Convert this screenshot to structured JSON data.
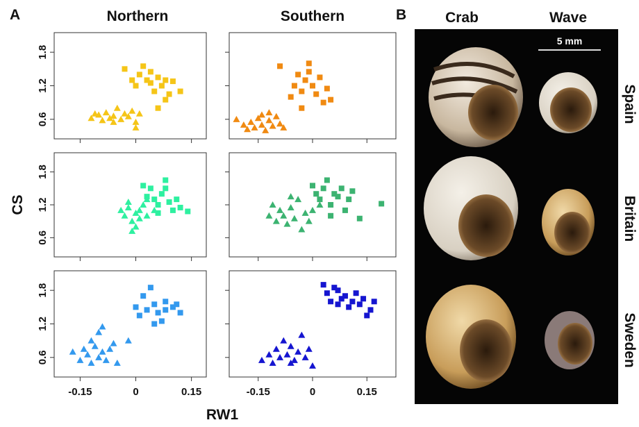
{
  "figure": {
    "panel_a": "A",
    "columns": [
      "Northern",
      "Southern"
    ],
    "xlabel": "RW1",
    "ylabel": "CS"
  },
  "photos": {
    "panel_b": "B",
    "columns": [
      "Crab",
      "Wave"
    ],
    "scale": "5 mm",
    "rows": [
      "Spain",
      "Britain",
      "Sweden"
    ]
  },
  "chart_data": [
    {
      "type": "scatter",
      "xlim": [
        -0.22,
        0.19
      ],
      "ylim": [
        0.25,
        2.15
      ],
      "xticks": [
        -0.15,
        0,
        0.15
      ],
      "yticks": [
        0.6,
        1.2,
        1.8
      ],
      "show_xtick_labels": false,
      "show_ytick_labels": true,
      "series": [
        {
          "marker": "triangle",
          "color": "#f5c518",
          "x": [
            -0.12,
            -0.1,
            -0.09,
            -0.08,
            -0.07,
            -0.06,
            -0.05,
            -0.04,
            -0.03,
            -0.02,
            -0.01,
            0.0,
            0.01,
            0.0,
            -0.06,
            -0.11
          ],
          "y": [
            0.62,
            0.68,
            0.58,
            0.72,
            0.62,
            0.66,
            0.8,
            0.6,
            0.7,
            0.65,
            0.75,
            0.55,
            0.7,
            0.45,
            0.55,
            0.7
          ]
        },
        {
          "marker": "square",
          "color": "#f5c518",
          "x": [
            -0.03,
            -0.01,
            0.0,
            0.01,
            0.02,
            0.03,
            0.04,
            0.05,
            0.06,
            0.07,
            0.08,
            0.08,
            0.09,
            0.12,
            0.04,
            0.1,
            0.06
          ],
          "y": [
            1.5,
            1.3,
            1.2,
            1.4,
            1.55,
            1.3,
            1.25,
            1.1,
            1.35,
            1.2,
            1.3,
            0.95,
            1.05,
            1.1,
            1.45,
            1.28,
            0.8
          ]
        }
      ]
    },
    {
      "type": "scatter",
      "xlim": [
        -0.23,
        0.23
      ],
      "ylim": [
        0.25,
        2.15
      ],
      "xticks": [
        -0.15,
        0,
        0.15
      ],
      "yticks": [
        0.6,
        1.2,
        1.8
      ],
      "show_xtick_labels": false,
      "show_ytick_labels": false,
      "series": [
        {
          "marker": "triangle",
          "color": "#f08a12",
          "x": [
            -0.21,
            -0.19,
            -0.17,
            -0.16,
            -0.15,
            -0.14,
            -0.13,
            -0.12,
            -0.11,
            -0.1,
            -0.09,
            -0.08,
            -0.14,
            -0.18,
            -0.12
          ],
          "y": [
            0.6,
            0.5,
            0.55,
            0.45,
            0.62,
            0.5,
            0.4,
            0.58,
            0.48,
            0.65,
            0.52,
            0.45,
            0.68,
            0.42,
            0.72
          ]
        },
        {
          "marker": "square",
          "color": "#f08a12",
          "x": [
            -0.09,
            -0.06,
            -0.05,
            -0.04,
            -0.03,
            -0.02,
            -0.01,
            0.0,
            0.01,
            0.02,
            0.03,
            0.04,
            -0.03,
            0.05,
            -0.01
          ],
          "y": [
            1.55,
            1.0,
            1.2,
            1.4,
            1.1,
            1.3,
            1.6,
            1.2,
            1.05,
            1.35,
            0.9,
            1.15,
            0.8,
            0.95,
            1.45
          ]
        }
      ]
    },
    {
      "type": "scatter",
      "xlim": [
        -0.22,
        0.19
      ],
      "ylim": [
        0.25,
        2.15
      ],
      "xticks": [
        -0.15,
        0,
        0.15
      ],
      "yticks": [
        0.6,
        1.2,
        1.8
      ],
      "show_xtick_labels": false,
      "show_ytick_labels": true,
      "series": [
        {
          "marker": "triangle",
          "color": "#2ef0a0",
          "x": [
            -0.04,
            -0.03,
            -0.02,
            -0.01,
            0.0,
            0.0,
            0.01,
            0.02,
            -0.01,
            0.03,
            0.03,
            0.05,
            -0.02,
            0.01
          ],
          "y": [
            1.1,
            1.0,
            1.15,
            0.9,
            0.8,
            1.05,
            0.95,
            1.2,
            0.72,
            1.0,
            1.3,
            1.1,
            1.25,
            1.1
          ]
        },
        {
          "marker": "square",
          "color": "#2ef0a0",
          "x": [
            0.02,
            0.03,
            0.04,
            0.05,
            0.06,
            0.07,
            0.08,
            0.09,
            0.1,
            0.11,
            0.12,
            0.14,
            0.06,
            0.08
          ],
          "y": [
            1.55,
            1.35,
            1.5,
            1.3,
            1.2,
            1.4,
            1.65,
            1.25,
            1.1,
            1.3,
            1.15,
            1.08,
            1.05,
            1.5
          ]
        }
      ]
    },
    {
      "type": "scatter",
      "xlim": [
        -0.23,
        0.23
      ],
      "ylim": [
        0.25,
        2.15
      ],
      "xticks": [
        -0.15,
        0,
        0.15
      ],
      "yticks": [
        0.6,
        1.2,
        1.8
      ],
      "show_xtick_labels": false,
      "show_ytick_labels": false,
      "series": [
        {
          "marker": "triangle",
          "color": "#3cb371",
          "x": [
            -0.12,
            -0.11,
            -0.1,
            -0.09,
            -0.08,
            -0.07,
            -0.06,
            -0.05,
            -0.04,
            -0.03,
            -0.02,
            -0.01,
            0.0,
            -0.06,
            0.02
          ],
          "y": [
            1.0,
            1.2,
            0.9,
            1.1,
            1.0,
            0.85,
            1.15,
            0.95,
            1.3,
            0.75,
            1.05,
            0.9,
            1.1,
            1.35,
            1.2
          ]
        },
        {
          "marker": "square",
          "color": "#3cb371",
          "x": [
            0.0,
            0.01,
            0.02,
            0.03,
            0.04,
            0.05,
            0.06,
            0.07,
            0.08,
            0.09,
            0.1,
            0.11,
            0.13,
            0.19,
            0.05
          ],
          "y": [
            1.55,
            1.4,
            1.3,
            1.5,
            1.65,
            1.2,
            1.4,
            1.35,
            1.5,
            1.1,
            1.3,
            1.45,
            0.95,
            1.22,
            1.0
          ]
        }
      ]
    },
    {
      "type": "scatter",
      "xlim": [
        -0.22,
        0.19
      ],
      "ylim": [
        0.25,
        2.15
      ],
      "xticks": [
        -0.15,
        0,
        0.15
      ],
      "yticks": [
        0.6,
        1.2,
        1.8
      ],
      "show_xtick_labels": true,
      "show_ytick_labels": true,
      "series": [
        {
          "marker": "triangle",
          "color": "#3399ee",
          "x": [
            -0.17,
            -0.15,
            -0.14,
            -0.13,
            -0.12,
            -0.12,
            -0.11,
            -0.1,
            -0.09,
            -0.09,
            -0.08,
            -0.07,
            -0.06,
            -0.05,
            -0.02,
            -0.1
          ],
          "y": [
            0.7,
            0.55,
            0.75,
            0.65,
            0.9,
            0.5,
            0.8,
            0.6,
            1.15,
            0.7,
            0.55,
            0.75,
            0.85,
            0.5,
            0.9,
            1.05
          ]
        },
        {
          "marker": "square",
          "color": "#3399ee",
          "x": [
            0.0,
            0.01,
            0.02,
            0.03,
            0.04,
            0.05,
            0.06,
            0.07,
            0.08,
            0.08,
            0.1,
            0.12,
            0.05,
            0.11
          ],
          "y": [
            1.5,
            1.35,
            1.7,
            1.45,
            1.85,
            1.55,
            1.4,
            1.25,
            1.6,
            1.45,
            1.5,
            1.4,
            1.2,
            1.55
          ]
        }
      ]
    },
    {
      "type": "scatter",
      "xlim": [
        -0.23,
        0.23
      ],
      "ylim": [
        0.25,
        2.15
      ],
      "xticks": [
        -0.15,
        0,
        0.15
      ],
      "yticks": [
        0.6,
        1.2,
        1.8
      ],
      "show_xtick_labels": true,
      "show_ytick_labels": false,
      "series": [
        {
          "marker": "triangle",
          "color": "#1515d0",
          "x": [
            -0.14,
            -0.12,
            -0.11,
            -0.1,
            -0.09,
            -0.08,
            -0.07,
            -0.06,
            -0.05,
            -0.04,
            -0.03,
            -0.02,
            -0.01,
            0.0,
            -0.06
          ],
          "y": [
            0.55,
            0.65,
            0.5,
            0.75,
            0.6,
            0.9,
            0.65,
            0.8,
            0.55,
            0.7,
            1.0,
            0.6,
            0.75,
            0.45,
            0.5
          ]
        },
        {
          "marker": "square",
          "color": "#1515d0",
          "x": [
            0.03,
            0.04,
            0.05,
            0.06,
            0.07,
            0.08,
            0.09,
            0.1,
            0.11,
            0.12,
            0.13,
            0.14,
            0.16,
            0.17,
            0.07,
            0.15
          ],
          "y": [
            1.9,
            1.75,
            1.6,
            1.85,
            1.55,
            1.65,
            1.7,
            1.5,
            1.6,
            1.75,
            1.55,
            1.65,
            1.45,
            1.6,
            1.8,
            1.35
          ]
        }
      ]
    }
  ]
}
